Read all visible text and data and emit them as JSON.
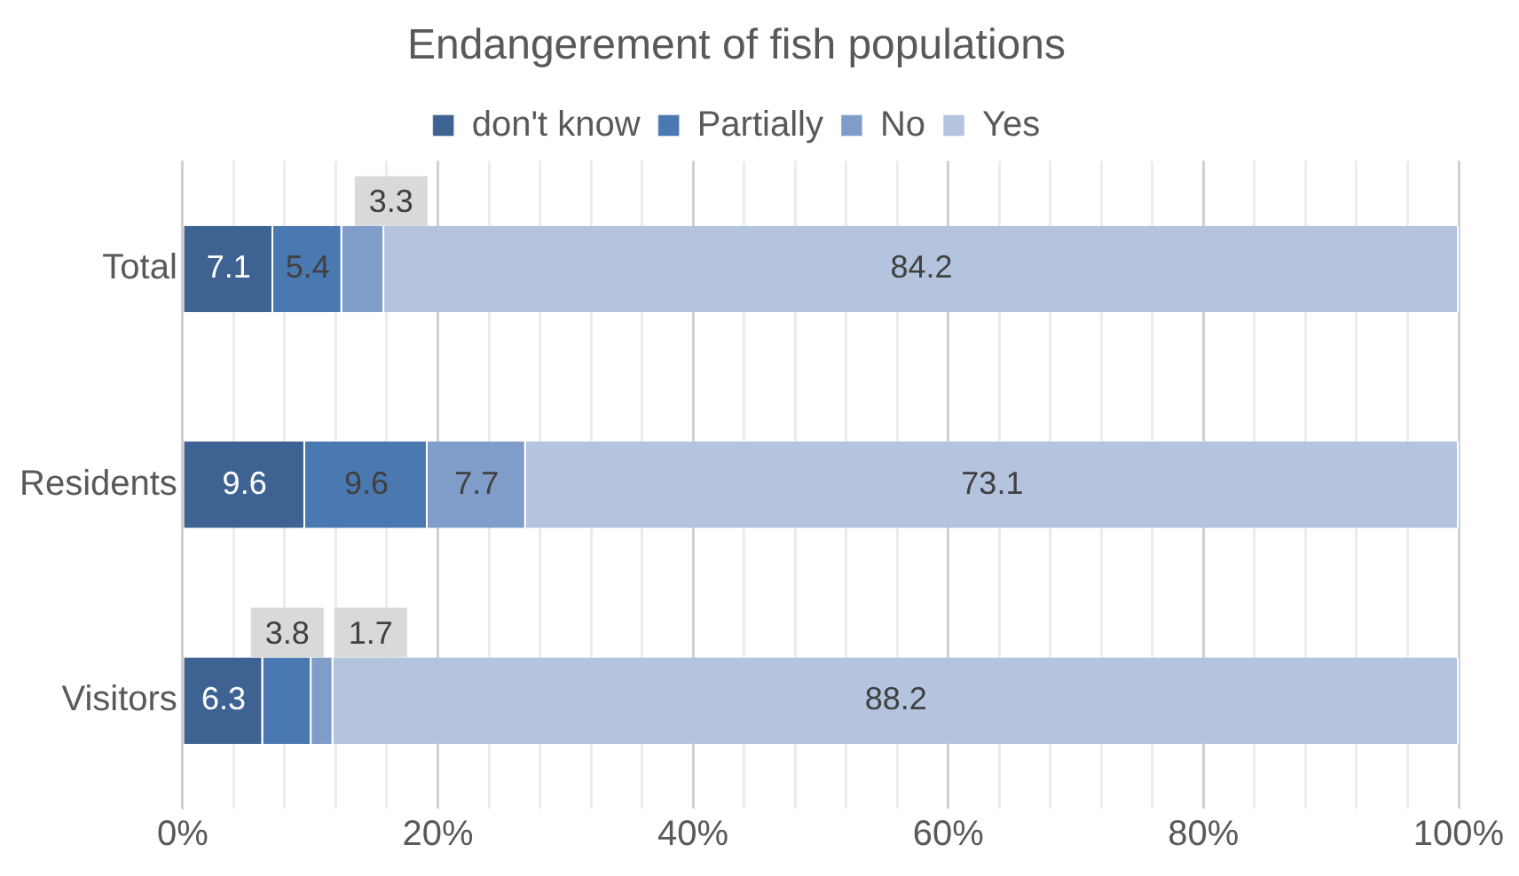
{
  "chart_data": {
    "type": "bar",
    "orientation": "horizontal",
    "stacked": true,
    "title": "Endangerement of fish populations",
    "categories": [
      "Total",
      "Residents",
      "Visitors"
    ],
    "series": [
      {
        "name": "don't know",
        "color": "#3e6393",
        "values": [
          7.1,
          9.6,
          6.3
        ]
      },
      {
        "name": "Partially",
        "color": "#4a78b0",
        "values": [
          5.4,
          9.6,
          3.8
        ]
      },
      {
        "name": "No",
        "color": "#7f9dc8",
        "values": [
          3.3,
          7.7,
          1.7
        ]
      },
      {
        "name": "Yes",
        "color": "#b4c3de",
        "values": [
          84.2,
          73.1,
          88.2
        ]
      }
    ],
    "xlim": [
      0,
      100
    ],
    "xticks": [
      {
        "value": 0,
        "label": "0%"
      },
      {
        "value": 4,
        "label": null
      },
      {
        "value": 8,
        "label": null
      },
      {
        "value": 12,
        "label": null
      },
      {
        "value": 16,
        "label": null
      },
      {
        "value": 20,
        "label": "20%"
      },
      {
        "value": 24,
        "label": null
      },
      {
        "value": 28,
        "label": null
      },
      {
        "value": 32,
        "label": null
      },
      {
        "value": 36,
        "label": null
      },
      {
        "value": 40,
        "label": "40%"
      },
      {
        "value": 44,
        "label": null
      },
      {
        "value": 48,
        "label": null
      },
      {
        "value": 52,
        "label": null
      },
      {
        "value": 56,
        "label": null
      },
      {
        "value": 60,
        "label": "60%"
      },
      {
        "value": 64,
        "label": null
      },
      {
        "value": 68,
        "label": null
      },
      {
        "value": 72,
        "label": null
      },
      {
        "value": 76,
        "label": null
      },
      {
        "value": 80,
        "label": "80%"
      },
      {
        "value": 84,
        "label": null
      },
      {
        "value": 88,
        "label": null
      },
      {
        "value": 92,
        "label": null
      },
      {
        "value": 96,
        "label": null
      },
      {
        "value": 100,
        "label": "100%"
      }
    ],
    "grid": "x",
    "legend": "top",
    "data_labels": true
  }
}
